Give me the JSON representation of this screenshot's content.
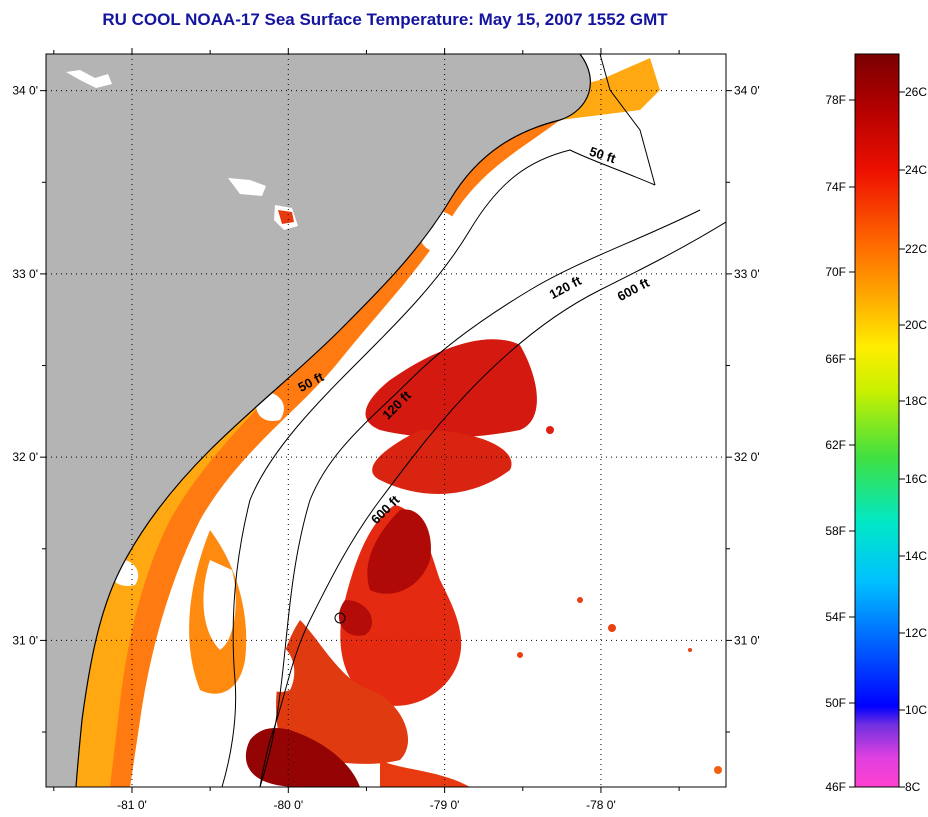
{
  "title": "RU COOL  NOAA-17  Sea Surface Temperature:  May 15, 2007 1552 GMT",
  "map": {
    "lat_ticks": [
      {
        "value": 34.0,
        "label": "34 0'"
      },
      {
        "value": 33.0,
        "label": "33 0'"
      },
      {
        "value": 32.0,
        "label": "32 0'"
      },
      {
        "value": 31.0,
        "label": "31 0'"
      }
    ],
    "lon_ticks": [
      {
        "value": -81.0,
        "label": "-81 0'"
      },
      {
        "value": -80.0,
        "label": "-80 0'"
      },
      {
        "value": -79.0,
        "label": "-79 0'"
      },
      {
        "value": -78.0,
        "label": "-78 0'"
      }
    ],
    "lat_range": [
      30.2,
      34.2
    ],
    "lon_range": [
      -81.55,
      -77.2
    ],
    "contours": [
      {
        "label": "50 ft",
        "depth_ft": 50
      },
      {
        "label": "120 ft",
        "depth_ft": 120
      },
      {
        "label": "600 ft",
        "depth_ft": 600
      }
    ],
    "colors": {
      "land": "#b4b4b4",
      "cloud": "#ffffff"
    }
  },
  "colorbar": {
    "fahrenheit_labels": [
      "78F",
      "74F",
      "70F",
      "66F",
      "62F",
      "58F",
      "54F",
      "50F",
      "46F"
    ],
    "celsius_labels": [
      "26C",
      "24C",
      "22C",
      "20C",
      "18C",
      "16C",
      "14C",
      "12C",
      "10C",
      "8C"
    ]
  }
}
